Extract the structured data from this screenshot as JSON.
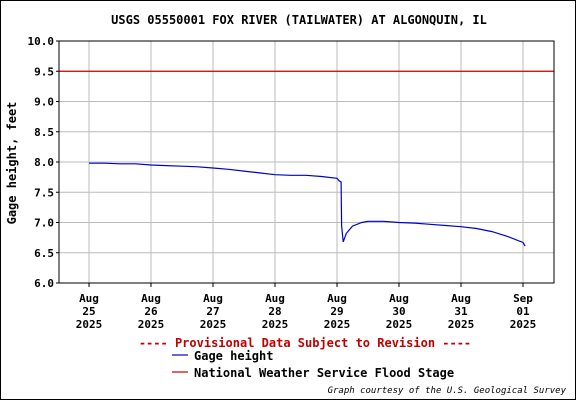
{
  "chart_data": {
    "type": "line",
    "title": "USGS 05550001 FOX RIVER (TAILWATER) AT ALGONQUIN, IL",
    "ylabel": "Gage height, feet",
    "xlabel": "",
    "ylim": [
      6.0,
      10.0
    ],
    "yticks": [
      "10.0",
      "9.5",
      "9.0",
      "8.5",
      "8.0",
      "7.5",
      "7.0",
      "6.5",
      "6.0"
    ],
    "xlim_days": [
      0,
      7.75
    ],
    "xticks": [
      {
        "label": [
          "Aug",
          "25",
          "2025"
        ]
      },
      {
        "label": [
          "Aug",
          "26",
          "2025"
        ]
      },
      {
        "label": [
          "Aug",
          "27",
          "2025"
        ]
      },
      {
        "label": [
          "Aug",
          "28",
          "2025"
        ]
      },
      {
        "label": [
          "Aug",
          "29",
          "2025"
        ]
      },
      {
        "label": [
          "Aug",
          "30",
          "2025"
        ]
      },
      {
        "label": [
          "Aug",
          "31",
          "2025"
        ]
      },
      {
        "label": [
          "Sep",
          "01",
          "2025"
        ]
      }
    ],
    "grid": true,
    "series": [
      {
        "name": "Gage height",
        "color": "#0000cc",
        "x": [
          "2025-08-25 00:00",
          "2025-08-25 06:00",
          "2025-08-25 12:00",
          "2025-08-25 18:00",
          "2025-08-26 00:00",
          "2025-08-26 06:00",
          "2025-08-26 12:00",
          "2025-08-26 18:00",
          "2025-08-27 00:00",
          "2025-08-27 06:00",
          "2025-08-27 12:00",
          "2025-08-27 18:00",
          "2025-08-28 00:00",
          "2025-08-28 06:00",
          "2025-08-28 12:00",
          "2025-08-28 18:00",
          "2025-08-29 00:00",
          "2025-08-29 00:48",
          "2025-08-29 01:36",
          "2025-08-29 01:48",
          "2025-08-29 02:24",
          "2025-08-29 03:36",
          "2025-08-29 06:00",
          "2025-08-29 09:36",
          "2025-08-29 12:00",
          "2025-08-29 18:00",
          "2025-08-30 00:00",
          "2025-08-30 06:00",
          "2025-08-30 12:00",
          "2025-08-30 18:00",
          "2025-08-31 00:00",
          "2025-08-31 06:00",
          "2025-08-31 12:00",
          "2025-08-31 18:00",
          "2025-09-01 00:00",
          "2025-09-01 00:48"
        ],
        "y": [
          7.98,
          7.98,
          7.97,
          7.97,
          7.95,
          7.94,
          7.93,
          7.92,
          7.9,
          7.88,
          7.85,
          7.82,
          7.79,
          7.78,
          7.78,
          7.76,
          7.73,
          7.69,
          7.67,
          6.95,
          6.68,
          6.82,
          6.94,
          7.0,
          7.02,
          7.02,
          7.0,
          6.99,
          6.97,
          6.95,
          6.93,
          6.9,
          6.85,
          6.77,
          6.67,
          6.61
        ]
      },
      {
        "name": "National Weather Service Flood Stage",
        "color": "#cc0000",
        "constant": 9.5
      }
    ],
    "note": "---- Provisional Data Subject to Revision ----",
    "credit": "Graph courtesy of the U.S. Geological Survey"
  }
}
